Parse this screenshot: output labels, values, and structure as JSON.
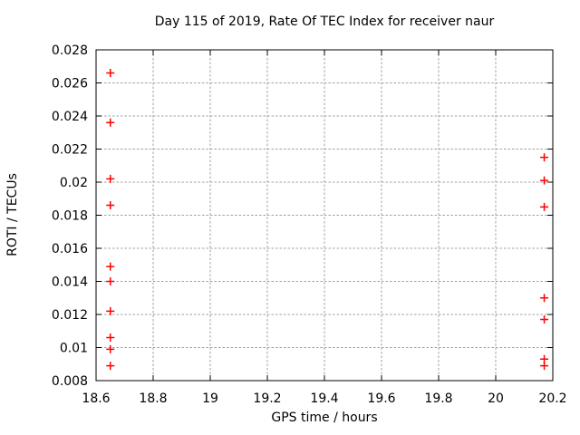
{
  "page": {
    "background": "#ffffff"
  },
  "chart_data": {
    "type": "scatter",
    "title": "Day 115 of 2019, Rate Of TEC Index for receiver naur",
    "xlabel": "GPS time / hours",
    "ylabel": "ROTI / TECUs",
    "xlim": [
      18.6,
      20.2
    ],
    "ylim": [
      0.008,
      0.028
    ],
    "xticks": [
      18.6,
      18.8,
      19,
      19.2,
      19.4,
      19.6,
      19.8,
      20,
      20.2
    ],
    "yticks": [
      0.008,
      0.01,
      0.012,
      0.014,
      0.016,
      0.018,
      0.02,
      0.022,
      0.024,
      0.026,
      0.028
    ],
    "grid": true,
    "legend": "none",
    "axis_color": "#000000",
    "grid_color": "#a0a0a0",
    "marker": {
      "shape": "plus",
      "color": "#ff0000",
      "size": 9
    },
    "series": [
      {
        "name": "ROTI",
        "points": [
          [
            18.65,
            0.0266
          ],
          [
            18.65,
            0.0236
          ],
          [
            18.65,
            0.0202
          ],
          [
            18.65,
            0.0186
          ],
          [
            18.65,
            0.0149
          ],
          [
            18.65,
            0.014
          ],
          [
            18.65,
            0.0122
          ],
          [
            18.65,
            0.0106
          ],
          [
            18.65,
            0.0099
          ],
          [
            18.65,
            0.0089
          ],
          [
            20.17,
            0.0215
          ],
          [
            20.17,
            0.0201
          ],
          [
            20.17,
            0.0185
          ],
          [
            20.17,
            0.013
          ],
          [
            20.17,
            0.0117
          ],
          [
            20.17,
            0.0093
          ],
          [
            20.17,
            0.0089
          ]
        ]
      }
    ]
  }
}
